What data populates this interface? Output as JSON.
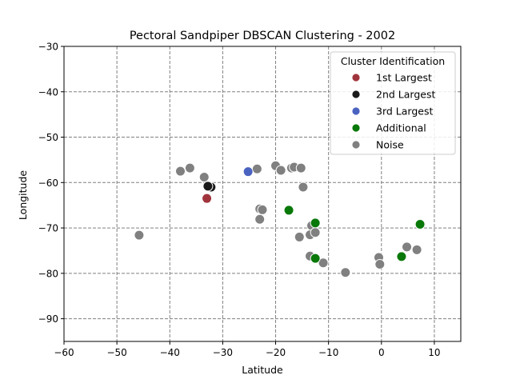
{
  "chart_data": {
    "type": "scatter",
    "title": "Pectoral Sandpiper DBSCAN Clustering - 2002",
    "xlabel": "Latitude",
    "ylabel": "Longitude",
    "xlim": [
      -60,
      15
    ],
    "ylim": [
      -95,
      -30
    ],
    "xticks": [
      -60,
      -50,
      -40,
      -30,
      -20,
      -10,
      0,
      10
    ],
    "yticks": [
      -90,
      -80,
      -70,
      -60,
      -50,
      -40,
      -30
    ],
    "grid": true,
    "legend": {
      "title": "Cluster Identification",
      "placement": "top-right",
      "entries": [
        "1st Largest",
        "2nd Largest",
        "3rd Largest",
        "Additional",
        "Noise"
      ]
    },
    "series": [
      {
        "name": "Noise",
        "color": "#808080",
        "points": [
          [
            -45.8,
            -71.6
          ],
          [
            -38,
            -57.5
          ],
          [
            -36.2,
            -56.8
          ],
          [
            -33.5,
            -58.8
          ],
          [
            -23.5,
            -57
          ],
          [
            -20,
            -56.3
          ],
          [
            -19,
            -57.3
          ],
          [
            -17,
            -56.8
          ],
          [
            -16.5,
            -56.6
          ],
          [
            -15.2,
            -56.8
          ],
          [
            -14.8,
            -61
          ],
          [
            -23,
            -65.8
          ],
          [
            -22.5,
            -66
          ],
          [
            -23,
            -68.1
          ],
          [
            -13.2,
            -69.5
          ],
          [
            -13.5,
            -71.5
          ],
          [
            -15.5,
            -72
          ],
          [
            -12.5,
            -71
          ],
          [
            -13.5,
            -76.2
          ],
          [
            -11,
            -77.7
          ],
          [
            -6.8,
            -79.8
          ],
          [
            -0.5,
            -76.5
          ],
          [
            -0.3,
            -78
          ],
          [
            4.8,
            -74.2
          ],
          [
            6.7,
            -74.8
          ]
        ]
      },
      {
        "name": "1st Largest",
        "color": "#a0343c",
        "points": [
          [
            -33,
            -63.5
          ]
        ]
      },
      {
        "name": "2nd Largest",
        "color": "#1a1a1a",
        "points": [
          [
            -32.2,
            -61
          ],
          [
            -32.8,
            -60.8
          ]
        ]
      },
      {
        "name": "3rd Largest",
        "color": "#4a63c0",
        "points": [
          [
            -25.2,
            -57.6
          ]
        ]
      },
      {
        "name": "Additional",
        "color": "#087808",
        "points": [
          [
            -17.5,
            -66.1
          ],
          [
            -12.5,
            -68.9
          ],
          [
            -12.5,
            -76.7
          ],
          [
            3.8,
            -76.3
          ],
          [
            7.3,
            -69.2
          ]
        ]
      }
    ]
  }
}
